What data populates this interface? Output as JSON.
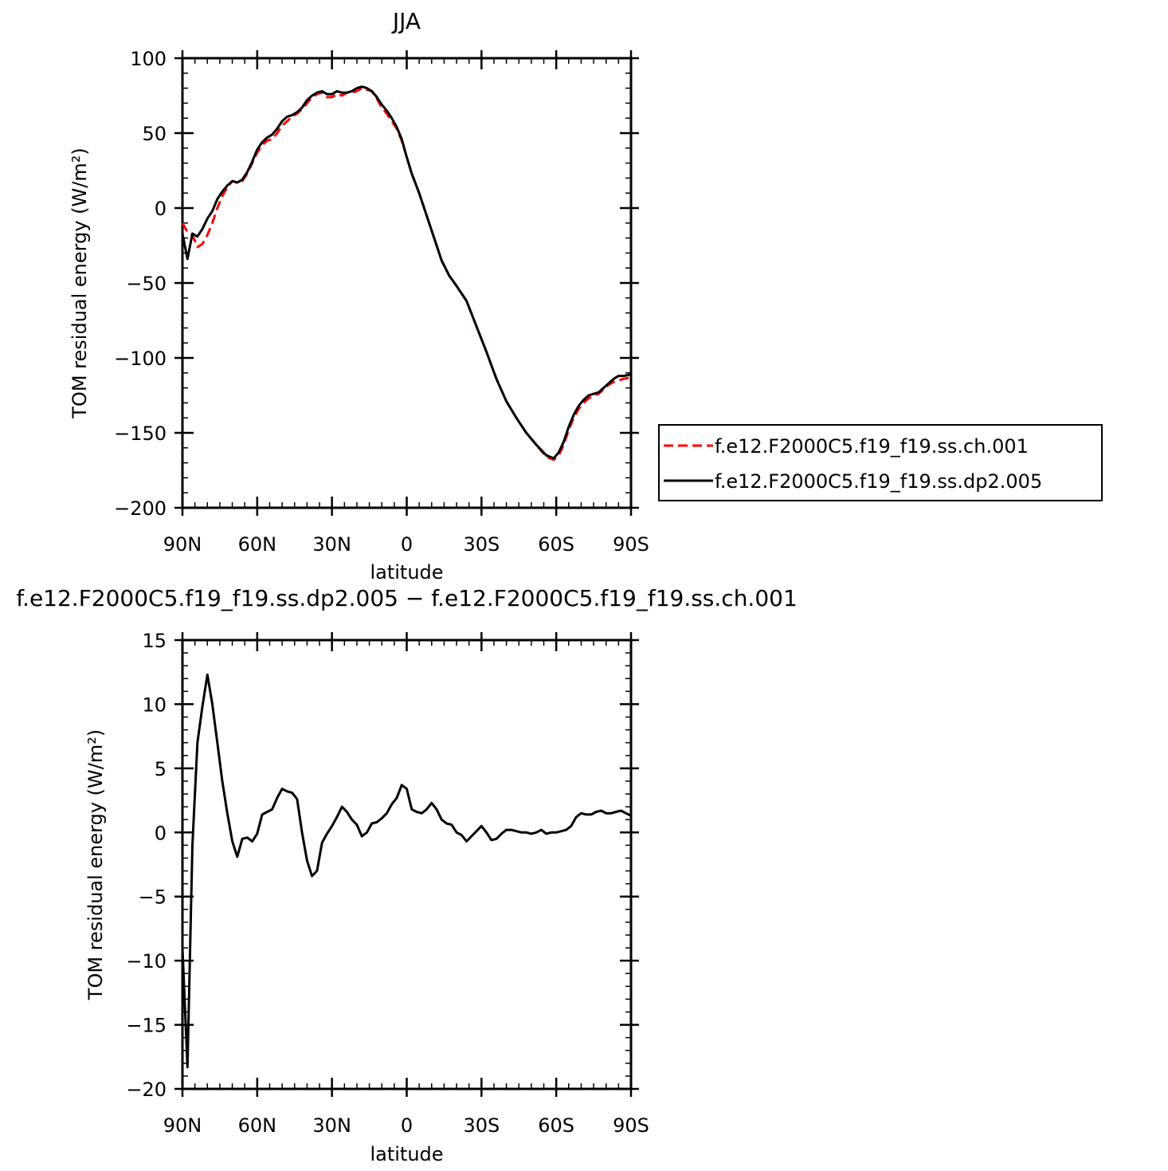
{
  "chart_data": [
    {
      "type": "line",
      "title": "JJA",
      "xlabel": "latitude",
      "ylabel": "TOM residual energy (W/m²)",
      "xlim": [
        90,
        -90
      ],
      "ylim": [
        -200,
        100
      ],
      "x_ticks": [
        {
          "value": 90,
          "label": "90N"
        },
        {
          "value": 60,
          "label": "60N"
        },
        {
          "value": 30,
          "label": "30N"
        },
        {
          "value": 0,
          "label": "0"
        },
        {
          "value": -30,
          "label": "30S"
        },
        {
          "value": -60,
          "label": "60S"
        },
        {
          "value": -90,
          "label": "90S"
        }
      ],
      "y_ticks": [
        {
          "value": 100,
          "label": "100"
        },
        {
          "value": 50,
          "label": "50"
        },
        {
          "value": 0,
          "label": "0"
        },
        {
          "value": -50,
          "label": "−50"
        },
        {
          "value": -100,
          "label": "−100"
        },
        {
          "value": -150,
          "label": "−150"
        },
        {
          "value": -200,
          "label": "−200"
        }
      ],
      "grid": false,
      "legend": "outside-right",
      "series": [
        {
          "name": "f.e12.F2000C5.f19_f19.ss.ch.001",
          "color": "#ff0000",
          "dash": "dashed",
          "x": [
            90,
            88,
            86,
            84,
            82,
            80,
            78,
            76,
            74,
            72,
            70,
            68,
            66,
            64,
            62,
            60,
            58,
            56,
            54,
            52,
            50,
            48,
            46,
            44,
            42,
            40,
            38,
            36,
            34,
            32,
            30,
            28,
            26,
            24,
            22,
            20,
            18,
            16,
            14,
            12,
            10,
            8,
            6,
            4,
            2,
            0,
            -2,
            -5,
            -8,
            -11,
            -14,
            -17,
            -20,
            -24,
            -28,
            -32,
            -36,
            -40,
            -44,
            -48,
            -52,
            -56,
            -59,
            -61,
            -63,
            -65,
            -67,
            -69,
            -71,
            -73,
            -75,
            -77,
            -79,
            -81,
            -83,
            -85,
            -87,
            -90
          ],
          "y": [
            -10,
            -16,
            -18,
            -26,
            -24,
            -18,
            -10,
            0,
            8,
            14,
            18,
            17,
            18,
            23,
            30,
            37,
            42,
            45,
            46,
            50,
            55,
            58,
            61,
            63,
            66,
            70,
            74,
            76,
            77,
            74,
            74,
            76,
            75,
            77,
            77,
            78,
            80,
            79,
            78,
            73,
            67,
            63,
            58,
            53,
            45,
            34,
            23,
            10,
            -5,
            -20,
            -35,
            -45,
            -52,
            -62,
            -79,
            -96,
            -114,
            -129,
            -140,
            -150,
            -158,
            -166,
            -168,
            -165,
            -158,
            -148,
            -140,
            -134,
            -130,
            -127,
            -125,
            -124,
            -121,
            -118,
            -116,
            -115,
            -114,
            -113
          ]
        },
        {
          "name": "f.e12.F2000C5.f19_f19.ss.dp2.005",
          "color": "#000000",
          "dash": "solid",
          "x": [
            90,
            88,
            86,
            84,
            82,
            80,
            78,
            76,
            74,
            72,
            70,
            68,
            66,
            64,
            62,
            60,
            58,
            56,
            54,
            52,
            50,
            48,
            46,
            44,
            42,
            40,
            38,
            36,
            34,
            32,
            30,
            28,
            26,
            24,
            22,
            20,
            18,
            16,
            14,
            12,
            10,
            8,
            6,
            4,
            2,
            0,
            -2,
            -5,
            -8,
            -11,
            -14,
            -17,
            -20,
            -24,
            -28,
            -32,
            -36,
            -40,
            -44,
            -48,
            -52,
            -56,
            -59,
            -61,
            -63,
            -65,
            -67,
            -69,
            -71,
            -73,
            -75,
            -77,
            -79,
            -81,
            -83,
            -85,
            -87,
            -90
          ],
          "y": [
            -17,
            -34,
            -17,
            -19,
            -14,
            -7,
            -2,
            6,
            11,
            15,
            18,
            17,
            19,
            24,
            31,
            39,
            44,
            47,
            49,
            53,
            58,
            61,
            62,
            64,
            67,
            72,
            75,
            77,
            78,
            76,
            76,
            78,
            77,
            77,
            78,
            80,
            81,
            80,
            78,
            74,
            69,
            65,
            60,
            54,
            46,
            34,
            23,
            10,
            -5,
            -20,
            -35,
            -45,
            -52,
            -62,
            -79,
            -96,
            -114,
            -129,
            -140,
            -150,
            -158,
            -165,
            -167,
            -163,
            -156,
            -146,
            -138,
            -132,
            -128,
            -125,
            -124,
            -123,
            -120,
            -117,
            -114,
            -112,
            -112,
            -111
          ]
        }
      ]
    },
    {
      "type": "line",
      "title": "f.e12.F2000C5.f19_f19.ss.dp2.005 − f.e12.F2000C5.f19_f19.ss.ch.001",
      "xlabel": "latitude",
      "ylabel": "TOM residual energy (W/m²)",
      "xlim": [
        90,
        -90
      ],
      "ylim": [
        -20,
        15
      ],
      "x_ticks": [
        {
          "value": 90,
          "label": "90N"
        },
        {
          "value": 60,
          "label": "60N"
        },
        {
          "value": 30,
          "label": "30N"
        },
        {
          "value": 0,
          "label": "0"
        },
        {
          "value": -30,
          "label": "30S"
        },
        {
          "value": -60,
          "label": "60S"
        },
        {
          "value": -90,
          "label": "90S"
        }
      ],
      "y_ticks": [
        {
          "value": 15,
          "label": "15"
        },
        {
          "value": 10,
          "label": "10"
        },
        {
          "value": 5,
          "label": "5"
        },
        {
          "value": 0,
          "label": "0"
        },
        {
          "value": -5,
          "label": "−5"
        },
        {
          "value": -10,
          "label": "−10"
        },
        {
          "value": -15,
          "label": "−15"
        },
        {
          "value": -20,
          "label": "−20"
        }
      ],
      "grid": false,
      "series": [
        {
          "color": "#000000",
          "dash": "solid",
          "x": [
            90,
            88,
            86,
            84,
            82,
            80,
            78,
            76,
            74,
            72,
            70,
            68,
            66,
            64,
            62,
            60,
            58,
            56,
            54,
            52,
            50,
            48,
            46,
            44,
            42,
            40,
            38,
            36,
            34,
            32,
            30,
            28,
            26,
            24,
            22,
            20,
            18,
            16,
            14,
            12,
            10,
            8,
            6,
            4,
            2,
            0,
            -2,
            -4,
            -6,
            -8,
            -10,
            -12,
            -14,
            -16,
            -18,
            -20,
            -22,
            -24,
            -26,
            -28,
            -30,
            -32,
            -34,
            -36,
            -38,
            -40,
            -42,
            -44,
            -46,
            -48,
            -50,
            -52,
            -54,
            -56,
            -58,
            -60,
            -62,
            -64,
            -66,
            -68,
            -70,
            -72,
            -74,
            -76,
            -78,
            -80,
            -82,
            -84,
            -86,
            -88,
            -90
          ],
          "y": [
            -9,
            -18.3,
            -1,
            7,
            9.8,
            12.3,
            10,
            7,
            4,
            1.5,
            -0.7,
            -1.9,
            -0.5,
            -0.4,
            -0.7,
            -0.1,
            1.4,
            1.6,
            1.8,
            2.7,
            3.4,
            3.2,
            3.1,
            2.6,
            0,
            -2.2,
            -3.4,
            -3,
            -0.8,
            -0.1,
            0.5,
            1.2,
            2,
            1.6,
            1,
            0.6,
            -0.3,
            0,
            0.7,
            0.8,
            1.1,
            1.5,
            2.2,
            2.7,
            3.7,
            3.4,
            1.8,
            1.6,
            1.5,
            1.8,
            2.3,
            1.8,
            1,
            0.7,
            0.6,
            0,
            -0.2,
            -0.7,
            -0.3,
            0.1,
            0.5,
            0,
            -0.6,
            -0.5,
            -0.1,
            0.2,
            0.2,
            0.1,
            0,
            0,
            -0.1,
            0,
            0.2,
            -0.1,
            0,
            0,
            0.1,
            0.2,
            0.5,
            1.2,
            1.5,
            1.4,
            1.4,
            1.6,
            1.7,
            1.5,
            1.5,
            1.6,
            1.7,
            1.5,
            1.3
          ]
        }
      ]
    }
  ]
}
